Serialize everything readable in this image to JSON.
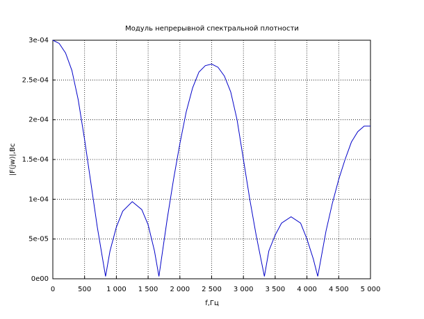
{
  "chart_data": {
    "type": "line",
    "title": "Модуль непрерывной спектральной плотности",
    "xlabel": "f,Гц",
    "ylabel": "|F(jw)|,Вс",
    "x": [
      0,
      100,
      200,
      300,
      400,
      500,
      600,
      700,
      830,
      900,
      1000,
      1100,
      1250,
      1400,
      1500,
      1600,
      1670,
      1800,
      1900,
      2000,
      2100,
      2200,
      2300,
      2400,
      2500,
      2600,
      2700,
      2800,
      2900,
      3000,
      3100,
      3200,
      3330,
      3400,
      3500,
      3600,
      3750,
      3900,
      4000,
      4100,
      4170,
      4300,
      4400,
      4500,
      4600,
      4700,
      4800,
      4900,
      5000
    ],
    "series": [
      {
        "name": "|F(jw)|",
        "color": "#0000c8",
        "values": [
          0.0003,
          0.000296,
          0.000284,
          0.000262,
          0.000225,
          0.000175,
          0.00012,
          6.5e-05,
          3e-06,
          3.5e-05,
          6.5e-05,
          8.5e-05,
          9.7e-05,
          8.7e-05,
          6.8e-05,
          3.5e-05,
          3e-06,
          7.5e-05,
          0.000125,
          0.00017,
          0.00021,
          0.00024,
          0.00026,
          0.000268,
          0.00027,
          0.000266,
          0.000255,
          0.000235,
          0.0002,
          0.00015,
          0.0001,
          5.5e-05,
          3e-06,
          3.5e-05,
          5.5e-05,
          7e-05,
          7.8e-05,
          7e-05,
          5e-05,
          2.5e-05,
          3e-06,
          6e-05,
          9.5e-05,
          0.000125,
          0.00015,
          0.000172,
          0.000185,
          0.000192,
          0.000192
        ]
      }
    ],
    "xlim": [
      0,
      5000
    ],
    "xticks": [
      0,
      500,
      {
        "value": 1000,
        "label": "1 000"
      },
      {
        "value": 1500,
        "label": "1 500"
      },
      {
        "value": 2000,
        "label": "2 000"
      },
      {
        "value": 2500,
        "label": "2 500"
      },
      {
        "value": 3000,
        "label": "3 000"
      },
      {
        "value": 3500,
        "label": "3 500"
      },
      {
        "value": 4000,
        "label": "4 000"
      },
      {
        "value": 4500,
        "label": "4 500"
      },
      {
        "value": 5000,
        "label": "5 000"
      }
    ],
    "ylim": [
      0,
      0.0003
    ],
    "yticks": [
      {
        "value": 0,
        "label": "0e00"
      },
      {
        "value": 5e-05,
        "label": "5e-05"
      },
      {
        "value": 0.0001,
        "label": "1e-04"
      },
      {
        "value": 0.00015,
        "label": "1.5e-04"
      },
      {
        "value": 0.0002,
        "label": "2e-04"
      },
      {
        "value": 0.00025,
        "label": "2.5e-04"
      },
      {
        "value": 0.0003,
        "label": "3e-04"
      }
    ],
    "grid": true
  }
}
